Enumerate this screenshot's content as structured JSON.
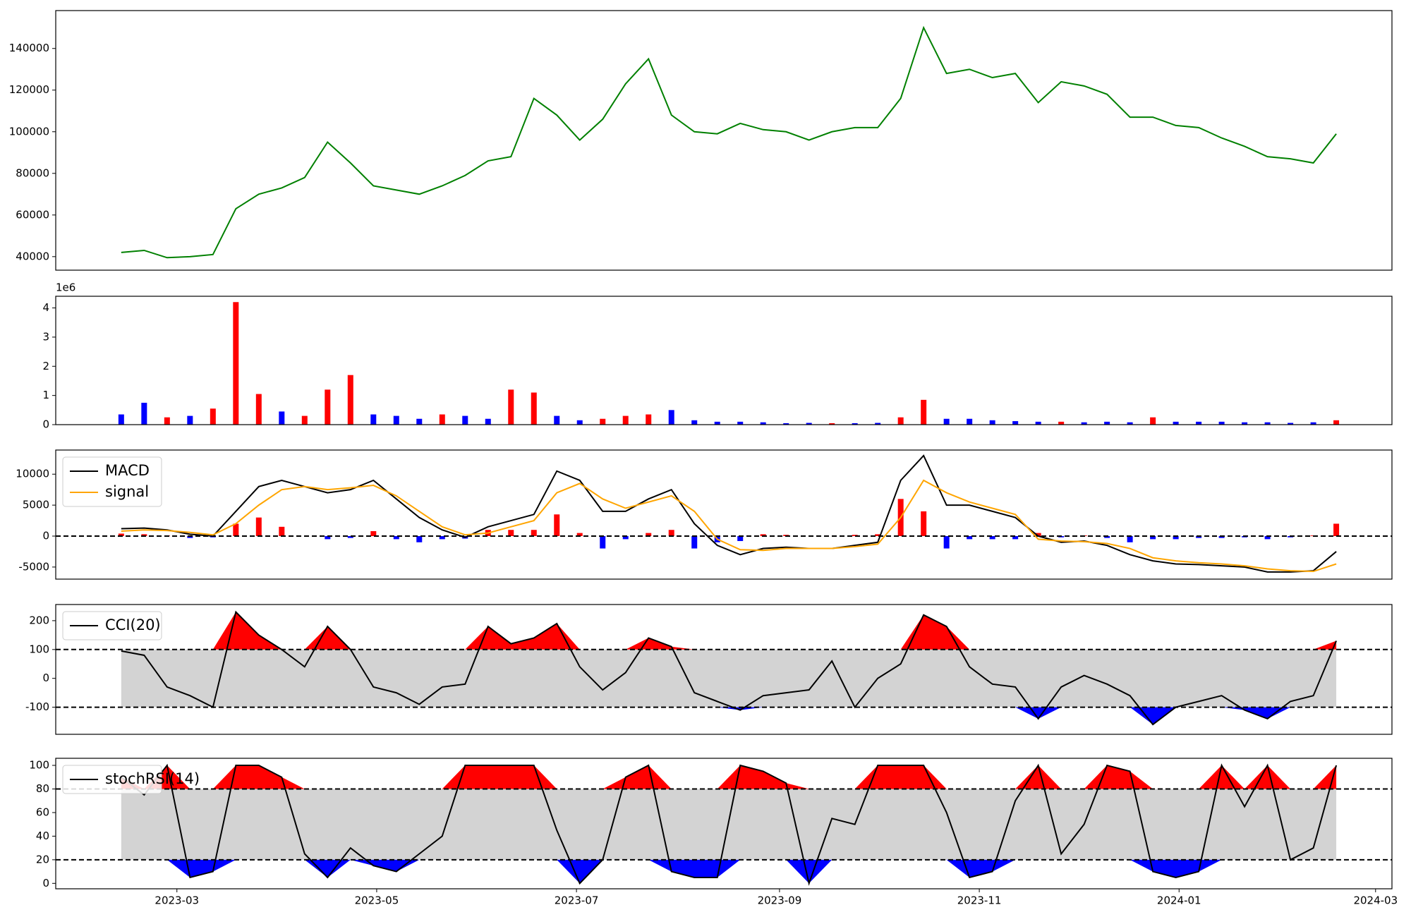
{
  "chart_data": [
    {
      "type": "line",
      "x": [
        "2023-02-12",
        "2023-02-19",
        "2023-02-26",
        "2023-03-05",
        "2023-03-12",
        "2023-03-19",
        "2023-03-26",
        "2023-04-02",
        "2023-04-09",
        "2023-04-16",
        "2023-04-23",
        "2023-04-30",
        "2023-05-07",
        "2023-05-14",
        "2023-05-21",
        "2023-05-28",
        "2023-06-04",
        "2023-06-11",
        "2023-06-18",
        "2023-06-25",
        "2023-07-02",
        "2023-07-09",
        "2023-07-16",
        "2023-07-23",
        "2023-07-30",
        "2023-08-06",
        "2023-08-13",
        "2023-08-20",
        "2023-08-27",
        "2023-09-03",
        "2023-09-10",
        "2023-09-17",
        "2023-09-24",
        "2023-10-01",
        "2023-10-08",
        "2023-10-15",
        "2023-10-22",
        "2023-10-29",
        "2023-11-05",
        "2023-11-12",
        "2023-11-19",
        "2023-11-26",
        "2023-12-03",
        "2023-12-10",
        "2023-12-17",
        "2023-12-24",
        "2023-12-31",
        "2024-01-07",
        "2024-01-14",
        "2024-01-21",
        "2024-01-28",
        "2024-02-04",
        "2024-02-11",
        "2024-02-18"
      ],
      "values": [
        42000,
        43000,
        39500,
        40000,
        41000,
        63000,
        70000,
        73000,
        78000,
        95000,
        85000,
        74000,
        72000,
        70000,
        74000,
        79000,
        86000,
        88000,
        116000,
        108000,
        96000,
        106000,
        123000,
        135000,
        108000,
        100000,
        99000,
        104000,
        101000,
        100000,
        96000,
        100000,
        102000,
        102000,
        116000,
        150000,
        128000,
        130000,
        126000,
        128000,
        114000,
        124000,
        122000,
        118000,
        107000,
        107000,
        103000,
        102000,
        97000,
        93000,
        88000,
        87000,
        85000,
        99000
      ],
      "color": "#008000",
      "xlim": [
        "2023-01-23",
        "2024-03-06"
      ],
      "ylim": [
        33500,
        158200
      ],
      "yticks": [
        40000,
        60000,
        80000,
        100000,
        120000,
        140000
      ]
    },
    {
      "type": "bar",
      "x": [
        "2023-02-12",
        "2023-02-19",
        "2023-02-26",
        "2023-03-05",
        "2023-03-12",
        "2023-03-19",
        "2023-03-26",
        "2023-04-02",
        "2023-04-09",
        "2023-04-16",
        "2023-04-23",
        "2023-04-30",
        "2023-05-07",
        "2023-05-14",
        "2023-05-21",
        "2023-05-28",
        "2023-06-04",
        "2023-06-11",
        "2023-06-18",
        "2023-06-25",
        "2023-07-02",
        "2023-07-09",
        "2023-07-16",
        "2023-07-23",
        "2023-07-30",
        "2023-08-06",
        "2023-08-13",
        "2023-08-20",
        "2023-08-27",
        "2023-09-03",
        "2023-09-10",
        "2023-09-17",
        "2023-09-24",
        "2023-10-01",
        "2023-10-08",
        "2023-10-15",
        "2023-10-22",
        "2023-10-29",
        "2023-11-05",
        "2023-11-12",
        "2023-11-19",
        "2023-11-26",
        "2023-12-03",
        "2023-12-10",
        "2023-12-17",
        "2023-12-24",
        "2023-12-31",
        "2024-01-07",
        "2024-01-14",
        "2024-01-21",
        "2024-01-28",
        "2024-02-04",
        "2024-02-11",
        "2024-02-18"
      ],
      "values": [
        0.35,
        0.75,
        0.25,
        0.3,
        0.55,
        4.2,
        1.05,
        0.45,
        0.3,
        1.2,
        1.7,
        0.35,
        0.3,
        0.2,
        0.35,
        0.3,
        0.2,
        1.2,
        1.1,
        0.3,
        0.15,
        0.2,
        0.3,
        0.35,
        0.5,
        0.15,
        0.1,
        0.1,
        0.08,
        0.05,
        0.06,
        0.05,
        0.05,
        0.06,
        0.25,
        0.85,
        0.2,
        0.2,
        0.15,
        0.12,
        0.1,
        0.1,
        0.08,
        0.1,
        0.08,
        0.25,
        0.1,
        0.1,
        0.1,
        0.08,
        0.08,
        0.06,
        0.08,
        0.15
      ],
      "colors": [
        "#0000ff",
        "#0000ff",
        "#ff0000",
        "#0000ff",
        "#ff0000",
        "#ff0000",
        "#ff0000",
        "#0000ff",
        "#ff0000",
        "#ff0000",
        "#ff0000",
        "#0000ff",
        "#0000ff",
        "#0000ff",
        "#ff0000",
        "#0000ff",
        "#0000ff",
        "#ff0000",
        "#ff0000",
        "#0000ff",
        "#0000ff",
        "#ff0000",
        "#ff0000",
        "#ff0000",
        "#0000ff",
        "#0000ff",
        "#0000ff",
        "#0000ff",
        "#0000ff",
        "#0000ff",
        "#0000ff",
        "#ff0000",
        "#0000ff",
        "#0000ff",
        "#ff0000",
        "#ff0000",
        "#0000ff",
        "#0000ff",
        "#0000ff",
        "#0000ff",
        "#0000ff",
        "#ff0000",
        "#0000ff",
        "#0000ff",
        "#0000ff",
        "#ff0000",
        "#0000ff",
        "#0000ff",
        "#0000ff",
        "#0000ff",
        "#0000ff",
        "#0000ff",
        "#0000ff",
        "#ff0000"
      ],
      "xlim": [
        "2023-01-23",
        "2024-03-06"
      ],
      "ylim": [
        0,
        4.4
      ],
      "yticks": [
        0,
        1,
        2,
        3,
        4
      ],
      "y_scale_label": "1e6"
    },
    {
      "type": "line",
      "x": [
        "2023-02-12",
        "2023-02-19",
        "2023-02-26",
        "2023-03-05",
        "2023-03-12",
        "2023-03-19",
        "2023-03-26",
        "2023-04-02",
        "2023-04-09",
        "2023-04-16",
        "2023-04-23",
        "2023-04-30",
        "2023-05-07",
        "2023-05-14",
        "2023-05-21",
        "2023-05-28",
        "2023-06-04",
        "2023-06-11",
        "2023-06-18",
        "2023-06-25",
        "2023-07-02",
        "2023-07-09",
        "2023-07-16",
        "2023-07-23",
        "2023-07-30",
        "2023-08-06",
        "2023-08-13",
        "2023-08-20",
        "2023-08-27",
        "2023-09-03",
        "2023-09-10",
        "2023-09-17",
        "2023-09-24",
        "2023-10-01",
        "2023-10-08",
        "2023-10-15",
        "2023-10-22",
        "2023-10-29",
        "2023-11-05",
        "2023-11-12",
        "2023-11-19",
        "2023-11-26",
        "2023-12-03",
        "2023-12-10",
        "2023-12-17",
        "2023-12-24",
        "2023-12-31",
        "2024-01-07",
        "2024-01-14",
        "2024-01-21",
        "2024-01-28",
        "2024-02-04",
        "2024-02-11",
        "2024-02-18"
      ],
      "series": [
        {
          "name": "MACD",
          "color": "#000000",
          "values": [
            1200,
            1300,
            1000,
            300,
            0,
            4000,
            8000,
            9000,
            8000,
            7000,
            7500,
            9000,
            6000,
            3000,
            1000,
            -200,
            1500,
            2500,
            3500,
            10500,
            9000,
            4000,
            4000,
            6000,
            7500,
            2000,
            -1500,
            -3000,
            -2000,
            -1800,
            -2000,
            -2000,
            -1500,
            -1000,
            9000,
            13000,
            5000,
            5000,
            4000,
            3000,
            0,
            -1000,
            -800,
            -1500,
            -3000,
            -4000,
            -4500,
            -4600,
            -4800,
            -5000,
            -5800,
            -5800,
            -5600,
            -2500
          ]
        },
        {
          "name": "signal",
          "color": "#ffa500",
          "values": [
            800,
            1000,
            900,
            600,
            200,
            2000,
            5000,
            7500,
            8000,
            7500,
            7800,
            8200,
            6500,
            4000,
            1500,
            200,
            500,
            1500,
            2500,
            7000,
            8500,
            6000,
            4500,
            5500,
            6500,
            4000,
            -500,
            -2200,
            -2300,
            -2000,
            -2000,
            -2000,
            -1700,
            -1300,
            3000,
            9000,
            7000,
            5500,
            4500,
            3500,
            -500,
            -800,
            -900,
            -1200,
            -2000,
            -3500,
            -4000,
            -4300,
            -4500,
            -4800,
            -5300,
            -5600,
            -5700,
            -4500
          ]
        }
      ],
      "histogram": {
        "values": [
          400,
          300,
          100,
          -300,
          -200,
          2000,
          3000,
          1500,
          0,
          -500,
          -300,
          800,
          -500,
          -1000,
          -500,
          -400,
          1000,
          1000,
          1000,
          3500,
          500,
          -2000,
          -500,
          500,
          1000,
          -2000,
          -1000,
          -800,
          300,
          200,
          0,
          0,
          200,
          300,
          6000,
          4000,
          -2000,
          -500,
          -500,
          -500,
          500,
          -200,
          100,
          -300,
          -1000,
          -500,
          -500,
          -300,
          -300,
          -200,
          -500,
          -200,
          100,
          2000
        ],
        "colors": {
          "up": "#ff0000",
          "down": "#0000ff"
        }
      },
      "hlines": [
        0
      ],
      "legend": "upper left",
      "xlim": [
        "2023-01-23",
        "2024-03-06"
      ],
      "ylim": [
        -6950,
        13900
      ],
      "yticks": [
        -5000,
        0,
        5000,
        10000
      ]
    },
    {
      "type": "line",
      "x": [
        "2023-02-12",
        "2023-02-19",
        "2023-02-26",
        "2023-03-05",
        "2023-03-12",
        "2023-03-19",
        "2023-03-26",
        "2023-04-02",
        "2023-04-09",
        "2023-04-16",
        "2023-04-23",
        "2023-04-30",
        "2023-05-07",
        "2023-05-14",
        "2023-05-21",
        "2023-05-28",
        "2023-06-04",
        "2023-06-11",
        "2023-06-18",
        "2023-06-25",
        "2023-07-02",
        "2023-07-09",
        "2023-07-16",
        "2023-07-23",
        "2023-07-30",
        "2023-08-06",
        "2023-08-13",
        "2023-08-20",
        "2023-08-27",
        "2023-09-03",
        "2023-09-10",
        "2023-09-17",
        "2023-09-24",
        "2023-10-01",
        "2023-10-08",
        "2023-10-15",
        "2023-10-22",
        "2023-10-29",
        "2023-11-05",
        "2023-11-12",
        "2023-11-19",
        "2023-11-26",
        "2023-12-03",
        "2023-12-10",
        "2023-12-17",
        "2023-12-24",
        "2023-12-31",
        "2024-01-07",
        "2024-01-14",
        "2024-01-21",
        "2024-01-28",
        "2024-02-04",
        "2024-02-11",
        "2024-02-18"
      ],
      "series": [
        {
          "name": "CCI(20)",
          "color": "#000000",
          "values": [
            95,
            80,
            -30,
            -60,
            -100,
            230,
            150,
            100,
            40,
            180,
            100,
            -30,
            -50,
            -90,
            -30,
            -20,
            180,
            120,
            140,
            190,
            40,
            -40,
            20,
            140,
            110,
            -50,
            -80,
            -110,
            -60,
            -50,
            -40,
            60,
            -100,
            0,
            50,
            220,
            180,
            40,
            -20,
            -30,
            -140,
            -30,
            10,
            -20,
            -60,
            -160,
            -100,
            -80,
            -60,
            -110,
            -140,
            -80,
            -60,
            130
          ]
        }
      ],
      "hlines": [
        -100,
        100
      ],
      "band_colors": {
        "inside": "#d3d3d3",
        "above": "#ff0000",
        "below": "#0000ff"
      },
      "legend": "upper left",
      "xlim": [
        "2023-01-23",
        "2024-03-06"
      ],
      "ylim": [
        -194,
        256
      ],
      "yticks": [
        -100,
        0,
        100,
        200
      ]
    },
    {
      "type": "line",
      "x": [
        "2023-02-12",
        "2023-02-19",
        "2023-02-26",
        "2023-03-05",
        "2023-03-12",
        "2023-03-19",
        "2023-03-26",
        "2023-04-02",
        "2023-04-09",
        "2023-04-16",
        "2023-04-23",
        "2023-04-30",
        "2023-05-07",
        "2023-05-14",
        "2023-05-21",
        "2023-05-28",
        "2023-06-04",
        "2023-06-11",
        "2023-06-18",
        "2023-06-25",
        "2023-07-02",
        "2023-07-09",
        "2023-07-16",
        "2023-07-23",
        "2023-07-30",
        "2023-08-06",
        "2023-08-13",
        "2023-08-20",
        "2023-08-27",
        "2023-09-03",
        "2023-09-10",
        "2023-09-17",
        "2023-09-24",
        "2023-10-01",
        "2023-10-08",
        "2023-10-15",
        "2023-10-22",
        "2023-10-29",
        "2023-11-05",
        "2023-11-12",
        "2023-11-19",
        "2023-11-26",
        "2023-12-03",
        "2023-12-10",
        "2023-12-17",
        "2023-12-24",
        "2023-12-31",
        "2024-01-07",
        "2024-01-14",
        "2024-01-21",
        "2024-01-28",
        "2024-02-04",
        "2024-02-11",
        "2024-02-18"
      ],
      "series": [
        {
          "name": "stochRSI(14)",
          "color": "#000000",
          "values": [
            90,
            75,
            100,
            5,
            10,
            100,
            100,
            90,
            25,
            5,
            30,
            15,
            10,
            25,
            40,
            100,
            100,
            100,
            100,
            45,
            0,
            20,
            90,
            100,
            10,
            5,
            5,
            100,
            95,
            85,
            0,
            55,
            50,
            100,
            100,
            100,
            60,
            5,
            10,
            70,
            100,
            25,
            50,
            100,
            95,
            10,
            5,
            10,
            100,
            65,
            100,
            20,
            30,
            100
          ]
        }
      ],
      "hlines": [
        20,
        80
      ],
      "band_colors": {
        "inside": "#d3d3d3",
        "above": "#ff0000",
        "below": "#0000ff"
      },
      "legend": "upper left",
      "xlim": [
        "2023-01-23",
        "2024-03-06"
      ],
      "ylim": [
        -4.6,
        106
      ],
      "yticks": [
        0,
        20,
        40,
        60,
        80,
        100
      ],
      "xticks": [
        {
          "value": "2023-03-01",
          "label": "2023-03"
        },
        {
          "value": "2023-05-01",
          "label": "2023-05"
        },
        {
          "value": "2023-07-01",
          "label": "2023-07"
        },
        {
          "value": "2023-09-01",
          "label": "2023-09"
        },
        {
          "value": "2023-11-01",
          "label": "2023-11"
        },
        {
          "value": "2024-01-01",
          "label": "2024-01"
        },
        {
          "value": "2024-03-01",
          "label": "2024-03"
        }
      ]
    }
  ]
}
